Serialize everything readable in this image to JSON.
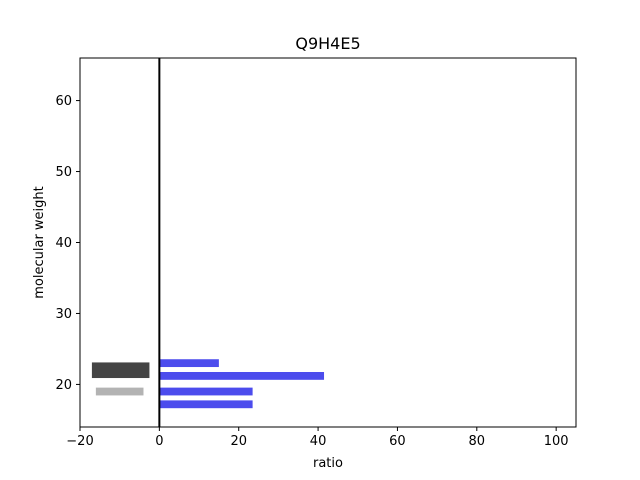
{
  "chart_data": {
    "type": "bar",
    "orientation": "horizontal",
    "title": "Q9H4E5",
    "xlabel": "ratio",
    "ylabel": "molecular weight",
    "xlim": [
      -20,
      105
    ],
    "ylim": [
      14,
      66
    ],
    "xticks": [
      -20,
      0,
      20,
      40,
      60,
      80,
      100
    ],
    "yticks": [
      20,
      30,
      40,
      50,
      60
    ],
    "xtick_labels": [
      "−20",
      "0",
      "20",
      "40",
      "60",
      "80",
      "100"
    ],
    "ytick_labels": [
      "20",
      "30",
      "40",
      "50",
      "60"
    ],
    "vertical_line_at_x": 0,
    "series": [
      {
        "color": "#0000e6",
        "alpha": 0.7,
        "bars": [
          {
            "y": 23.0,
            "from": 0,
            "to": 15,
            "thickness": 1.1
          },
          {
            "y": 21.2,
            "from": 0,
            "to": 41.5,
            "thickness": 1.1
          },
          {
            "y": 19.0,
            "from": 0,
            "to": 23.5,
            "thickness": 1.1
          },
          {
            "y": 17.2,
            "from": 0,
            "to": 23.5,
            "thickness": 1.1
          }
        ]
      },
      {
        "color": "#444444",
        "alpha": 1.0,
        "bars": [
          {
            "y": 22.0,
            "from": -17,
            "to": -2.5,
            "thickness": 2.2
          }
        ]
      },
      {
        "color": "#b3b3b3",
        "alpha": 1.0,
        "bars": [
          {
            "y": 19.0,
            "from": -16,
            "to": -4,
            "thickness": 1.1
          }
        ]
      }
    ]
  }
}
